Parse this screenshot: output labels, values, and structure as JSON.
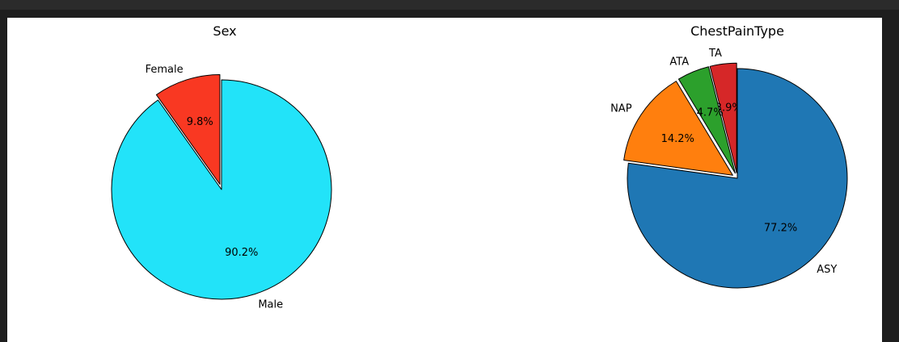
{
  "chart_data": [
    {
      "type": "pie",
      "title": "Sex",
      "labels": [
        "Female",
        "Male"
      ],
      "values": [
        9.8,
        90.2
      ],
      "pct_labels": [
        "9.8%",
        "90.2%"
      ],
      "colors": [
        "#f93822",
        "#22e3f9"
      ],
      "explode": [
        0.05,
        0.0
      ],
      "start_angle": 90,
      "edge_color": "#000000"
    },
    {
      "type": "pie",
      "title": "ChestPainType",
      "labels": [
        "TA",
        "ATA",
        "NAP",
        "ASY"
      ],
      "values": [
        3.9,
        4.7,
        14.2,
        77.2
      ],
      "pct_labels": [
        "3.9%",
        "4.7%",
        "14.2%",
        "77.2%"
      ],
      "colors": [
        "#d62728",
        "#2ca02c",
        "#ff7f0e",
        "#1f77b4"
      ],
      "explode": [
        0.05,
        0.05,
        0.05,
        0.0
      ],
      "start_angle": 90,
      "edge_color": "#000000"
    }
  ]
}
